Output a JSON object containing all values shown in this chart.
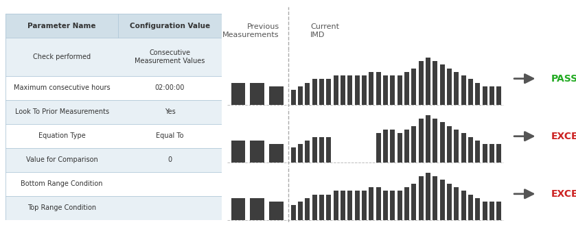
{
  "table_rows": [
    [
      "Parameter Name",
      "Configuration Value"
    ],
    [
      "Check performed",
      "Consecutive\nMeasurement Values"
    ],
    [
      "Maximum consecutive hours",
      "02:00:00"
    ],
    [
      "Look To Prior Measurements",
      "Yes"
    ],
    [
      "Equation Type",
      "Equal To"
    ],
    [
      "Value for Comparison",
      "0"
    ],
    [
      "Bottom Range Condition",
      ""
    ],
    [
      "Top Range Condition",
      ""
    ]
  ],
  "header_bg": "#d0dfe8",
  "row_bg_odd": "#e8f0f5",
  "row_bg_even": "#ffffff",
  "bar_color": "#3d3d3d",
  "arrow_color": "#555555",
  "pass_color": "#22aa22",
  "exception_color": "#cc2222",
  "prev_meas_label": "Previous\nMeasurements",
  "current_imd_label": "Current\nIMD",
  "label_color": "#555555",
  "chart1_prev": [
    6,
    6,
    5
  ],
  "chart1_curr": [
    4,
    5,
    6,
    7,
    7,
    7,
    8,
    8,
    8,
    8,
    8,
    9,
    9,
    8,
    8,
    8,
    9,
    10,
    12,
    13,
    12,
    11,
    10,
    9,
    8,
    7,
    6,
    5,
    5,
    5
  ],
  "chart2_prev": [
    6,
    6,
    5
  ],
  "chart2_curr": [
    4,
    5,
    6,
    7,
    7,
    7,
    0,
    0,
    0,
    0,
    0,
    0,
    8,
    9,
    9,
    8,
    9,
    10,
    12,
    13,
    12,
    11,
    10,
    9,
    8,
    7,
    6,
    5,
    5,
    5
  ],
  "chart3_prev": [
    6,
    6,
    5
  ],
  "chart3_curr": [
    4,
    5,
    6,
    7,
    7,
    7,
    8,
    8,
    8,
    8,
    8,
    9,
    9,
    8,
    8,
    8,
    9,
    10,
    12,
    13,
    12,
    11,
    10,
    9,
    8,
    7,
    6,
    5,
    5,
    5
  ],
  "result1": "PASS",
  "result2": "EXCEPTION",
  "result3": "EXCEPTION",
  "table_col_split": 0.52,
  "chart_split": 0.22
}
